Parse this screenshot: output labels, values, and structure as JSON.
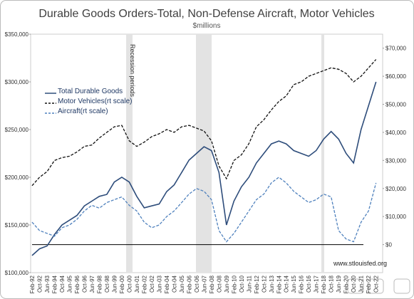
{
  "chart_data": {
    "type": "line",
    "title": "Durable Goods Orders-Total, Non-Defense Aircraft, Motor Vehicles",
    "subtitle": "$millions",
    "annotation": "Recession periods",
    "source": "www.stlouisfed.org",
    "categories": [
      "Feb-92",
      "Oct-92",
      "Jun-93",
      "Feb-94",
      "Oct-94",
      "Jun-95",
      "Feb-96",
      "Oct-96",
      "Jun-97",
      "Feb-98",
      "Oct-98",
      "Jun-99",
      "Feb-00",
      "Oct-00",
      "Jun-01",
      "Feb-02",
      "Oct-02",
      "Jun-03",
      "Feb-04",
      "Oct-04",
      "Jun-05",
      "Feb-06",
      "Oct-06",
      "Jun-07",
      "Feb-08",
      "Oct-08",
      "Jun-09",
      "Feb-10",
      "Oct-10",
      "Jun-11",
      "Feb-12",
      "Oct-12",
      "Jun-13",
      "Feb-14",
      "Oct-14",
      "Jun-15",
      "Feb-16",
      "Oct-16",
      "Jun-17",
      "Feb-18",
      "Oct-18",
      "Jun-19",
      "Feb-20",
      "Oct-20",
      "Jun-21",
      "Feb-22",
      "Oct-22"
    ],
    "series": [
      {
        "name": "Total Durable Goods",
        "color": "#2e4d7b",
        "dash": false,
        "values": [
          118000,
          125000,
          128000,
          140000,
          150000,
          155000,
          160000,
          170000,
          175000,
          180000,
          182000,
          195000,
          200000,
          195000,
          180000,
          168000,
          170000,
          172000,
          185000,
          192000,
          205000,
          218000,
          225000,
          232000,
          228000,
          205000,
          150000,
          175000,
          190000,
          200000,
          215000,
          225000,
          235000,
          238000,
          235000,
          228000,
          225000,
          222000,
          228000,
          240000,
          248000,
          240000,
          225000,
          215000,
          250000,
          275000,
          300000
        ]
      },
      {
        "name": "Motor Vehicles(rt scale)",
        "color": "#111111",
        "dash": true,
        "axis": "y2",
        "values": [
          21000,
          24000,
          26000,
          30000,
          31000,
          31500,
          33000,
          35000,
          35500,
          38000,
          40000,
          42000,
          42500,
          37000,
          35000,
          36500,
          38500,
          39500,
          41000,
          40000,
          42000,
          42500,
          41500,
          40500,
          37000,
          28000,
          23500,
          30000,
          32000,
          36000,
          42000,
          44500,
          48000,
          51000,
          53000,
          57000,
          58000,
          60000,
          61000,
          62000,
          63000,
          62500,
          61000,
          58000,
          60000,
          63000,
          66000
        ]
      },
      {
        "name": "Aircraft(rt scale)",
        "color": "#4f81bd",
        "dash": true,
        "axis": "y2",
        "values": [
          8000,
          5000,
          4000,
          3000,
          6000,
          7000,
          9000,
          12000,
          14000,
          13000,
          15000,
          16000,
          17000,
          14000,
          12000,
          8000,
          6000,
          7000,
          10000,
          12000,
          15000,
          18000,
          20000,
          19000,
          16000,
          5000,
          1000,
          4000,
          8000,
          12000,
          16000,
          18000,
          22000,
          24000,
          22000,
          19000,
          17000,
          15000,
          16000,
          18000,
          17000,
          5000,
          2000,
          1000,
          8000,
          12000,
          22000
        ]
      }
    ],
    "ylim": [
      100000,
      350000
    ],
    "yticks": [
      {
        "value": 100000,
        "label": "$100,000"
      },
      {
        "value": 150000,
        "label": "$150,000"
      },
      {
        "value": 200000,
        "label": "$200,000"
      },
      {
        "value": 250000,
        "label": "$250,000"
      },
      {
        "value": 300000,
        "label": "$300,000"
      },
      {
        "value": 350000,
        "label": "$350,000"
      }
    ],
    "y2lim": [
      -10000,
      75000
    ],
    "y2ticks": [
      {
        "value": 0,
        "label": "$0"
      },
      {
        "value": 10000,
        "label": "$10,000"
      },
      {
        "value": 20000,
        "label": "$20,000"
      },
      {
        "value": 30000,
        "label": "$30,000"
      },
      {
        "value": 40000,
        "label": "$40,000"
      },
      {
        "value": 50000,
        "label": "$50,000"
      },
      {
        "value": 60000,
        "label": "$60,000"
      },
      {
        "value": 70000,
        "label": "$70,000"
      }
    ],
    "legend": "upper left"
  }
}
